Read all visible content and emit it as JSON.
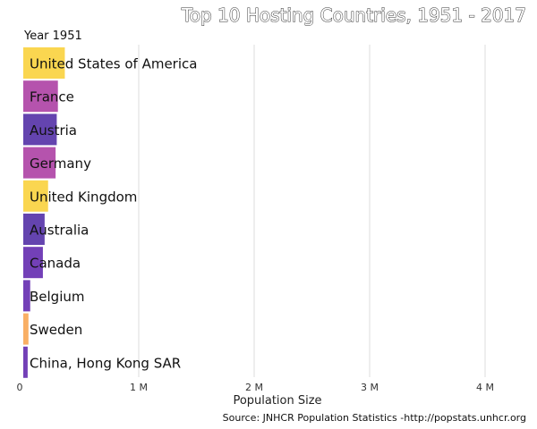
{
  "chart_data": {
    "type": "bar",
    "orientation": "horizontal",
    "title": "Top 10 Hosting Countries, 1951 - 2017",
    "subtitle": "Year 1951",
    "xlabel": "Population Size",
    "caption": "Source: JNHCR Population Statistics -http://popstats.unhcr.org",
    "xlim": [
      0,
      4200000
    ],
    "ticks": [
      {
        "value": 0,
        "label": "0"
      },
      {
        "value": 1000000,
        "label": "1 M"
      },
      {
        "value": 2000000,
        "label": "2 M"
      },
      {
        "value": 3000000,
        "label": "3 M"
      },
      {
        "value": 4000000,
        "label": "4 M"
      }
    ],
    "grid": true,
    "categories": [
      "United States of America",
      "France",
      "Austria",
      "Germany",
      "United Kingdom",
      "Australia",
      "Canada",
      "Belgium",
      "Sweden",
      "China, Hong Kong SAR"
    ],
    "values": [
      360000,
      300000,
      290000,
      280000,
      215000,
      185000,
      170000,
      60000,
      45000,
      38000
    ],
    "colors": [
      "#fad447",
      "#b14aa9",
      "#5c3aab",
      "#b14aa9",
      "#fad447",
      "#5c3aab",
      "#6b36b3",
      "#6b36b3",
      "#f9ab5c",
      "#6b36b3"
    ]
  }
}
